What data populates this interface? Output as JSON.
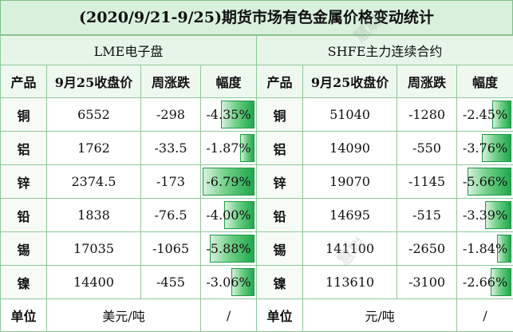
{
  "title": "(2020/9/21-9/25)期货市场有色金属价格变动统计",
  "sections": {
    "lme": "LME电子盘",
    "shfe": "SHFE主力连续合约"
  },
  "columns": {
    "product": "产品",
    "close": "9月25收盘价",
    "weekly_change": "周涨跌",
    "range": "幅度"
  },
  "rows": [
    {
      "product": "铜",
      "lme": {
        "close": "6552",
        "change": "-298",
        "pct": "-4.35%",
        "pct_value": 4.35
      },
      "shfe": {
        "close": "51040",
        "change": "-1280",
        "pct": "-2.45%",
        "pct_value": 2.45
      }
    },
    {
      "product": "铝",
      "lme": {
        "close": "1762",
        "change": "-33.5",
        "pct": "-1.87%",
        "pct_value": 1.87
      },
      "shfe": {
        "close": "14090",
        "change": "-550",
        "pct": "-3.76%",
        "pct_value": 3.76
      }
    },
    {
      "product": "锌",
      "lme": {
        "close": "2374.5",
        "change": "-173",
        "pct": "-6.79%",
        "pct_value": 6.79
      },
      "shfe": {
        "close": "19070",
        "change": "-1145",
        "pct": "-5.66%",
        "pct_value": 5.66
      }
    },
    {
      "product": "铅",
      "lme": {
        "close": "1838",
        "change": "-76.5",
        "pct": "-4.00%",
        "pct_value": 4.0
      },
      "shfe": {
        "close": "14695",
        "change": "-515",
        "pct": "-3.39%",
        "pct_value": 3.39
      }
    },
    {
      "product": "锡",
      "lme": {
        "close": "17035",
        "change": "-1065",
        "pct": "-5.88%",
        "pct_value": 5.88
      },
      "shfe": {
        "close": "141100",
        "change": "-2650",
        "pct": "-1.84%",
        "pct_value": 1.84
      }
    },
    {
      "product": "镍",
      "lme": {
        "close": "14400",
        "change": "-455",
        "pct": "-3.06%",
        "pct_value": 3.06
      },
      "shfe": {
        "close": "113610",
        "change": "-3100",
        "pct": "-2.66%",
        "pct_value": 2.66
      }
    }
  ],
  "unit_row": {
    "label": "单位",
    "lme_unit": "美元/吨",
    "shfe_unit": "元/吨",
    "slash": "/"
  },
  "bar_scale_max": 6.79,
  "colors": {
    "accent_green": "#2aa35a",
    "bar_dark": "#1fa84c",
    "header_bg": "#d9f0dc"
  }
}
